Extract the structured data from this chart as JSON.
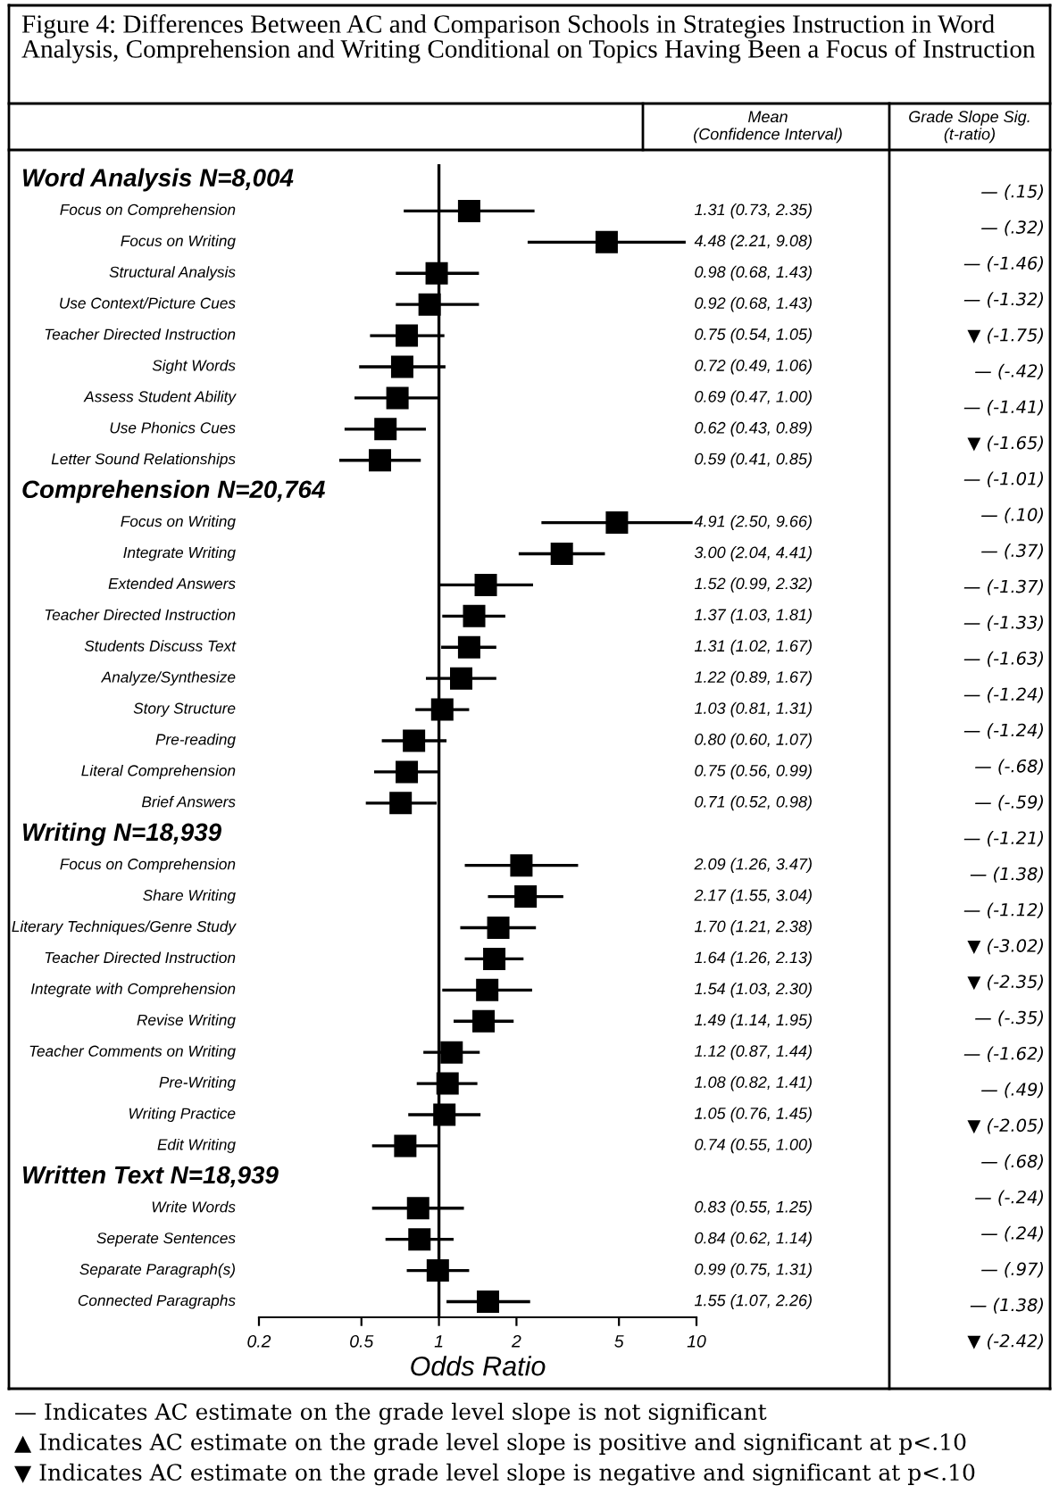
{
  "chart_data": {
    "type": "scatter",
    "orientation": "horizontal",
    "marker": "square",
    "grid": false,
    "log": "x",
    "title": "Figure 4: Differences Between AC and Comparison Schools in Strategies Instruction in Word Analysis, Comprehension and Writing Conditional on Topics Having Been a Focus of Instruction",
    "xlabel": "Odds Ratio",
    "xlim": [
      0.2,
      10
    ],
    "xticks": [
      0.2,
      0.5,
      1,
      2,
      5,
      10
    ],
    "ref_lines": [
      {
        "axis": "x",
        "value": 1,
        "color": "#000000"
      }
    ],
    "categories": [
      null,
      "Focus on Comprehension",
      "Focus on Writing",
      "Structural Analysis",
      "Use Context/Picture Cues",
      "Teacher Directed Instruction",
      "Sight Words",
      "Assess Student Ability",
      "Use Phonics Cues",
      "Letter Sound Relationships",
      null,
      "Focus on Writing",
      "Integrate Writing",
      "Extended Answers",
      "Teacher Directed Instruction",
      "Students Discuss Text",
      "Analyze/Synthesize",
      "Story Structure",
      "Pre-reading",
      "Literal Comprehension",
      "Brief Answers",
      null,
      "Focus on Comprehension",
      "Share Writing",
      "Literary Techniques/Genre Study",
      "Teacher Directed Instruction",
      "Integrate with Comprehension",
      "Revise Writing",
      "Teacher Comments on Writing",
      "Pre-Writing",
      "Writing Practice",
      "Edit Writing",
      null,
      "Write Words",
      "Seperate Sentences",
      "Separate Paragraph(s)",
      "Connected Paragraphs"
    ],
    "series": [
      {
        "color": "#000000",
        "values": [
          null,
          1.31,
          4.48,
          0.98,
          0.92,
          0.75,
          0.72,
          0.69,
          0.62,
          0.59,
          null,
          4.91,
          3.0,
          1.52,
          1.37,
          1.31,
          1.22,
          1.03,
          0.8,
          0.75,
          0.71,
          null,
          2.09,
          2.17,
          1.7,
          1.64,
          1.54,
          1.49,
          1.12,
          1.08,
          1.05,
          0.74,
          null,
          0.83,
          0.84,
          0.99,
          1.55
        ],
        "errors": [
          null,
          [
            0.73,
            2.35
          ],
          [
            2.21,
            9.08
          ],
          [
            0.68,
            1.43
          ],
          [
            0.68,
            1.43
          ],
          [
            0.54,
            1.05
          ],
          [
            0.49,
            1.06
          ],
          [
            0.47,
            1.0
          ],
          [
            0.43,
            0.89
          ],
          [
            0.41,
            0.85
          ],
          null,
          [
            2.5,
            9.66
          ],
          [
            2.04,
            4.41
          ],
          [
            0.99,
            2.32
          ],
          [
            1.03,
            1.81
          ],
          [
            1.02,
            1.67
          ],
          [
            0.89,
            1.67
          ],
          [
            0.81,
            1.31
          ],
          [
            0.6,
            1.07
          ],
          [
            0.56,
            0.99
          ],
          [
            0.52,
            0.98
          ],
          null,
          [
            1.26,
            3.47
          ],
          [
            1.55,
            3.04
          ],
          [
            1.21,
            2.38
          ],
          [
            1.26,
            2.13
          ],
          [
            1.03,
            2.3
          ],
          [
            1.14,
            1.95
          ],
          [
            0.87,
            1.44
          ],
          [
            0.82,
            1.41
          ],
          [
            0.76,
            1.45
          ],
          [
            0.55,
            1.0
          ],
          null,
          [
            0.55,
            1.25
          ],
          [
            0.62,
            1.14
          ],
          [
            0.75,
            1.31
          ],
          [
            1.07,
            2.26
          ]
        ],
        "value_labels": [
          null,
          "1.31 (0.73, 2.35)",
          "4.48 (2.21, 9.08)",
          "0.98 (0.68, 1.43)",
          "0.92 (0.68, 1.43)",
          "0.75 (0.54, 1.05)",
          "0.72 (0.49, 1.06)",
          "0.69 (0.47, 1.00)",
          "0.62 (0.43, 0.89)",
          "0.59 (0.41, 0.85)",
          null,
          "4.91 (2.50, 9.66)",
          "3.00 (2.04, 4.41)",
          "1.52 (0.99, 2.32)",
          "1.37 (1.03, 1.81)",
          "1.31 (1.02, 1.67)",
          "1.22 (0.89, 1.67)",
          "1.03 (0.81, 1.31)",
          "0.80 (0.60, 1.07)",
          "0.75 (0.56, 0.99)",
          "0.71 (0.52, 0.98)",
          null,
          "2.09 (1.26, 3.47)",
          "2.17 (1.55, 3.04)",
          "1.70 (1.21, 2.38)",
          "1.64 (1.26, 2.13)",
          "1.54 (1.03, 2.30)",
          "1.49 (1.14, 1.95)",
          "1.12 (0.87, 1.44)",
          "1.08 (0.82, 1.41)",
          "1.05 (0.76, 1.45)",
          "0.74 (0.55, 1.00)",
          null,
          "0.83 (0.55, 1.25)",
          "0.84 (0.62, 1.14)",
          "0.99 (0.75, 1.31)",
          "1.55 (1.07, 2.26)"
        ]
      }
    ],
    "annotations": [
      "Mean\n(Confidence Interval)",
      "Grade Slope Sig.\n(t-ratio)",
      "— Indicates AC estimate on the grade level slope is not significant",
      "▲ Indicates AC estimate on the grade level slope is positive and significant at p<.10",
      "▼ Indicates AC estimate on the grade level slope is negative and significant at p<.10",
      "Word Analysis N=8,004",
      "Comprehension N=20,764",
      "Writing N=18,939",
      "Written Text N=18,939",
      "— (.15)",
      "— (.32)",
      "— (-1.46)",
      "— (-1.32)",
      "▼ (-1.75)",
      "— (-.42)",
      "— (-1.41)",
      "▼ (-1.65)",
      "— (-1.01)",
      "— (.10)",
      "— (.37)",
      "— (-1.37)",
      "— (-1.33)",
      "— (-1.63)",
      "— (-1.24)",
      "— (-1.24)",
      "— (-.68)",
      "— (-.59)",
      "— (-1.21)",
      "— (1.38)",
      "— (-1.12)",
      "▼ (-3.02)",
      "▼ (-2.35)",
      "— (-.35)",
      "— (-1.62)",
      "— (.49)",
      "▼ (-2.05)",
      "— (.68)",
      "— (-.24)",
      "— (.24)",
      "— (.97)",
      "— (1.38)",
      "▼ (-2.42)"
    ]
  }
}
